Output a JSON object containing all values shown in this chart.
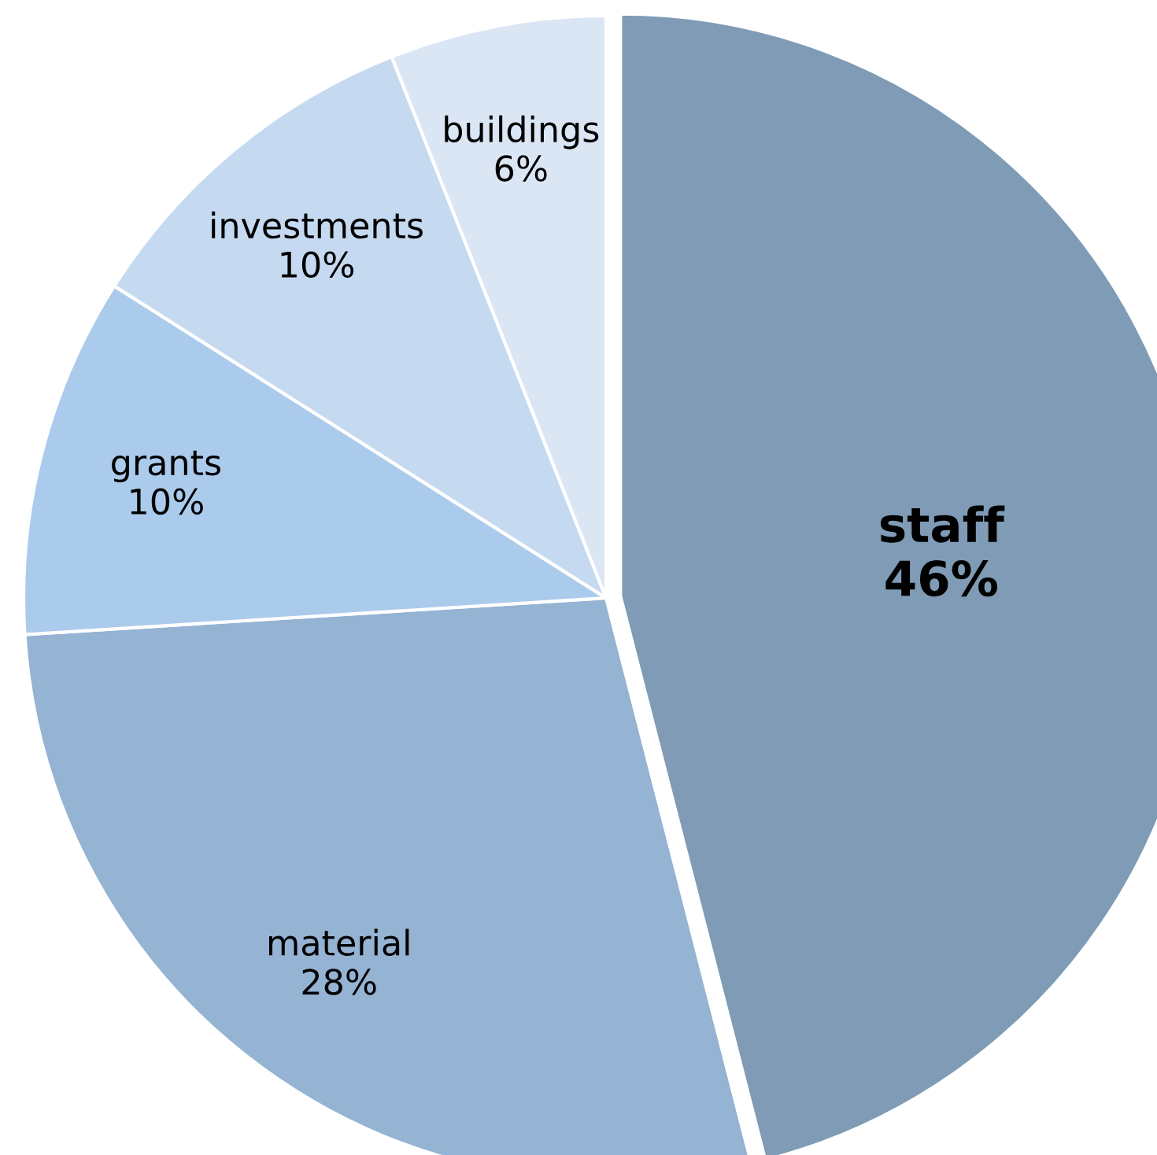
{
  "chart_data": {
    "type": "pie",
    "categories": [
      "staff",
      "material",
      "grants",
      "investments",
      "buildings"
    ],
    "values": [
      46,
      28,
      10,
      10,
      6
    ],
    "value_labels": [
      "46%",
      "28%",
      "10%",
      "10%",
      "6%"
    ],
    "colors": [
      "#7f9bb5",
      "#95b3d3",
      "#abcbec",
      "#c5d9f0",
      "#dbe6f5"
    ]
  }
}
